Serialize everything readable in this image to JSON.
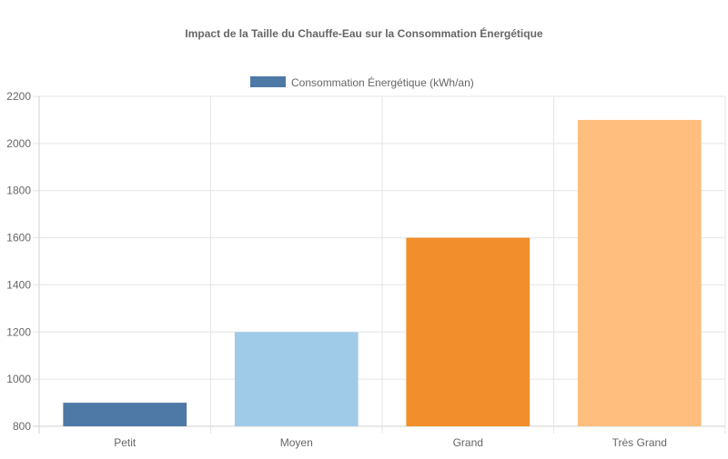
{
  "chart_data": {
    "type": "bar",
    "title": "Impact de la Taille du Chauffe-Eau sur la Consommation Énergétique",
    "categories": [
      "Petit",
      "Moyen",
      "Grand",
      "Très Grand"
    ],
    "series": [
      {
        "name": "Consommation Énergétique (kWh/an)",
        "values": [
          900,
          1200,
          1600,
          2100
        ],
        "colors": [
          "#4e79a7",
          "#a0cbe8",
          "#f28e2b",
          "#ffbe7d"
        ]
      }
    ],
    "xlabel": "",
    "ylabel": "",
    "ylim": [
      800,
      2200
    ],
    "yticks": [
      800,
      1000,
      1200,
      1400,
      1600,
      1800,
      2000,
      2200
    ],
    "grid": true,
    "legend_position": "top"
  }
}
